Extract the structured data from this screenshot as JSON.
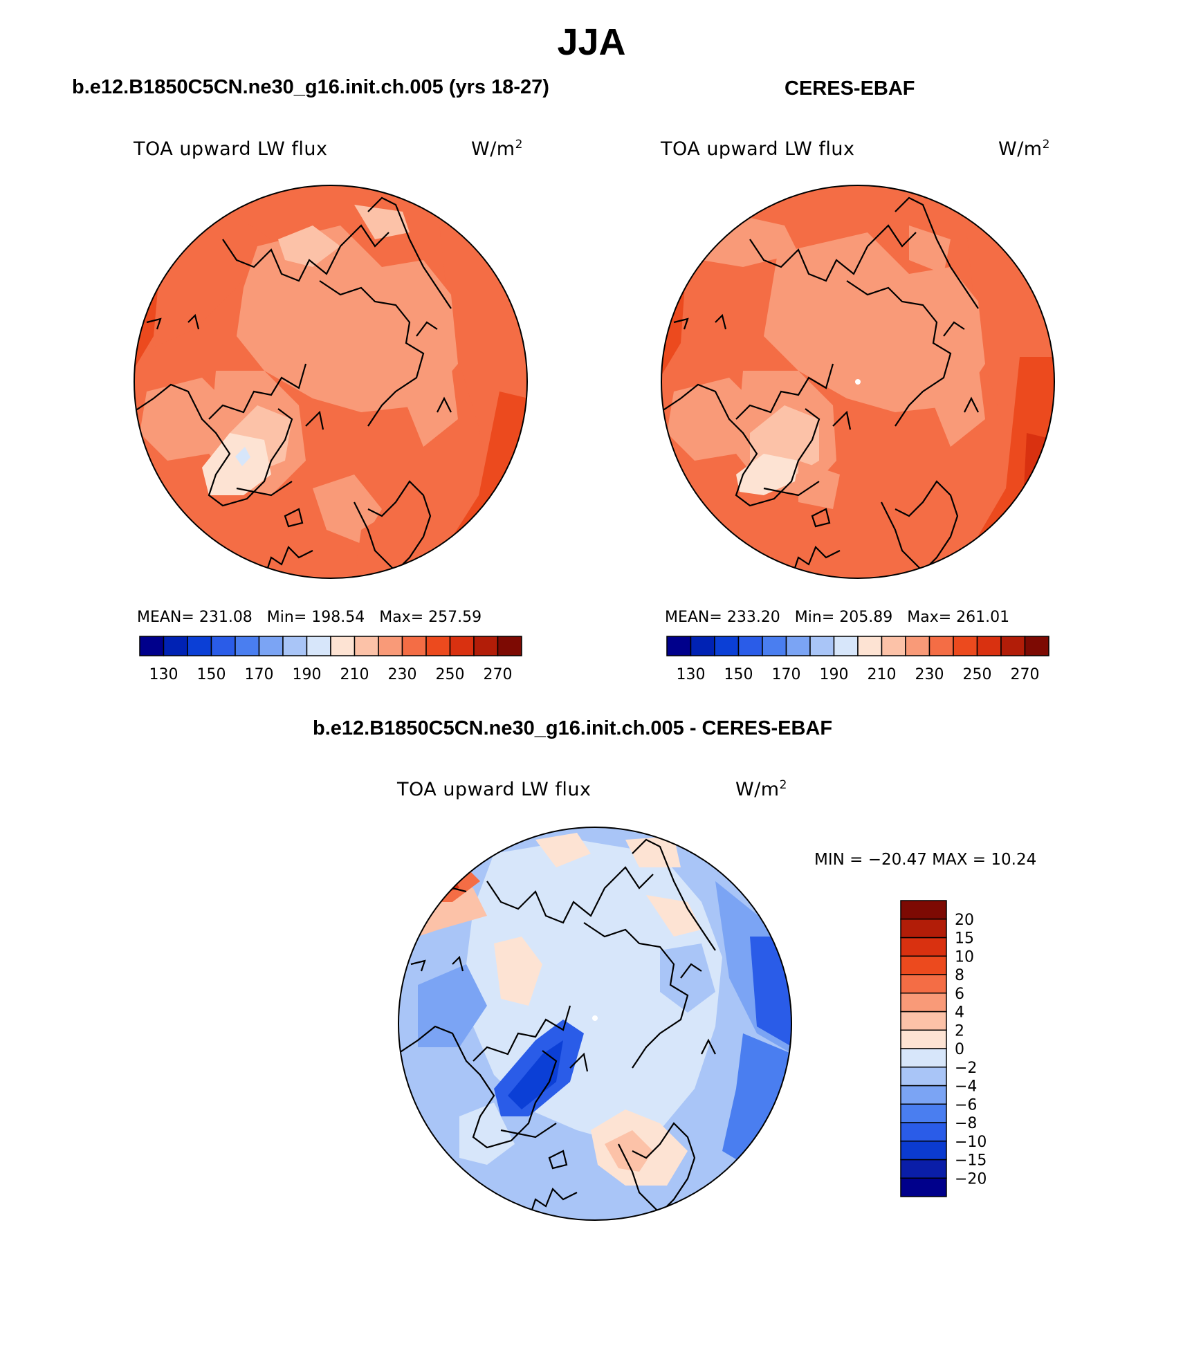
{
  "figure": {
    "title": "JJA"
  },
  "panels": [
    {
      "title": "b.e12.B1850C5CN.ne30_g16.init.ch.005 (yrs 18-27)",
      "variable": "TOA upward LW flux",
      "units_base": "W/m",
      "units_exp": "2",
      "stats": {
        "mean_label": "MEAN=",
        "mean": "231.08",
        "min_label": "Min=",
        "min": "198.54",
        "max_label": "Max=",
        "max": "257.59"
      }
    },
    {
      "title": "CERES-EBAF",
      "variable": "TOA upward LW flux",
      "units_base": "W/m",
      "units_exp": "2",
      "stats": {
        "mean_label": "MEAN=",
        "mean": "233.20",
        "min_label": "Min=",
        "min": "205.89",
        "max_label": "Max=",
        "max": "261.01"
      }
    },
    {
      "title": "b.e12.B1850C5CN.ne30_g16.init.ch.005 - CERES-EBAF",
      "variable": "TOA upward LW flux",
      "units_base": "W/m",
      "units_exp": "2",
      "minmax_text": "MIN = −20.47  MAX =   10.24"
    }
  ],
  "colorbar_abs": {
    "colors": [
      "#00008b",
      "#0022b4",
      "#0b3fd6",
      "#2a5ce8",
      "#4a7ef0",
      "#7ba4f4",
      "#a9c5f7",
      "#d7e6fa",
      "#fde3d3",
      "#fcc2a8",
      "#f99a78",
      "#f46d45",
      "#ec4a1e",
      "#d93110",
      "#b21d08",
      "#7d0a03"
    ],
    "labels": [
      "130",
      "150",
      "170",
      "190",
      "210",
      "230",
      "250",
      "270"
    ]
  },
  "colorbar_diff": {
    "colors": [
      "#00008b",
      "#0a1ea8",
      "#0b3bd0",
      "#2a5ce8",
      "#4a7ef0",
      "#7ba4f4",
      "#a9c5f7",
      "#d7e6fa",
      "#fde3d3",
      "#fcc2a8",
      "#f99a78",
      "#f46d45",
      "#ec4a1e",
      "#d93110",
      "#b21d08",
      "#7d0a03"
    ],
    "labels": [
      "−20",
      "−15",
      "−10",
      "−8",
      "−6",
      "−4",
      "−2",
      "0",
      "2",
      "4",
      "6",
      "8",
      "10",
      "15",
      "20"
    ]
  }
}
